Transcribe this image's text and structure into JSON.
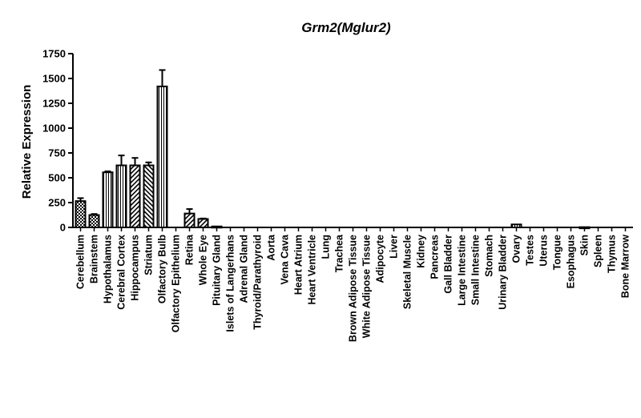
{
  "chart_data": {
    "type": "bar",
    "title": "Grm2(Mglur2)",
    "ylabel": "Relative Expression",
    "xlabel": "",
    "ylim": [
      0,
      1750
    ],
    "yticks": [
      0,
      250,
      500,
      750,
      1000,
      1250,
      1500,
      1750
    ],
    "ytick_labels": [
      "0",
      "250",
      "500",
      "750",
      "1000",
      "1250",
      "1500",
      "1750"
    ],
    "grid": false,
    "legend": "none",
    "categories": [
      "Cerebellum",
      "Brainstem",
      "Hypothalamus",
      "Cerebral Cortex",
      "Hippocampus",
      "Striatum",
      "Olfactory Bulb",
      "Olfactory Epithelium",
      "Retina",
      "Whole Eye",
      "Pituitary Gland",
      "Islets of Langerhans",
      "Adrenal Gland",
      "Thyroid/Parathyroid",
      "Aorta",
      "Vena Cava",
      "Heart Atrium",
      "Heart Ventricle",
      "Lung",
      "Trachea",
      "Brown Adipose Tissue",
      "White Adipose Tissue",
      "Adipocyte",
      "Liver",
      "Skeletal Muscle",
      "Kidney",
      "Pancreas",
      "Gall Bladder",
      "Large Intestine",
      "Small Intestine",
      "Stomach",
      "Urinary Bladder",
      "Ovary",
      "Testes",
      "Uterus",
      "Tongue",
      "Esophagus",
      "Skin",
      "Spleen",
      "Thymus",
      "Bone Marrow"
    ],
    "values": [
      265,
      125,
      555,
      625,
      625,
      625,
      1420,
      0,
      140,
      85,
      10,
      0,
      0,
      0,
      0,
      0,
      0,
      0,
      0,
      0,
      0,
      0,
      0,
      0,
      0,
      0,
      0,
      0,
      0,
      0,
      0,
      0,
      30,
      0,
      0,
      0,
      0,
      3,
      0,
      0,
      0
    ],
    "errors": [
      30,
      10,
      10,
      100,
      75,
      30,
      165,
      0,
      45,
      5,
      0,
      0,
      0,
      0,
      0,
      0,
      0,
      0,
      0,
      0,
      0,
      0,
      0,
      0,
      0,
      0,
      0,
      0,
      0,
      0,
      0,
      0,
      0,
      0,
      0,
      0,
      0,
      0,
      0,
      0,
      0
    ],
    "patterns": [
      "checker",
      "checker",
      "vertical",
      "vertical",
      "diag-right",
      "diag-left",
      "vertical",
      "none",
      "diag-right",
      "diag-right",
      "diag-right",
      "none",
      "none",
      "none",
      "none",
      "none",
      "none",
      "none",
      "none",
      "none",
      "none",
      "none",
      "none",
      "none",
      "none",
      "none",
      "none",
      "none",
      "none",
      "none",
      "none",
      "none",
      "vertical",
      "none",
      "none",
      "none",
      "none",
      "vertical",
      "none",
      "none",
      "none"
    ]
  }
}
